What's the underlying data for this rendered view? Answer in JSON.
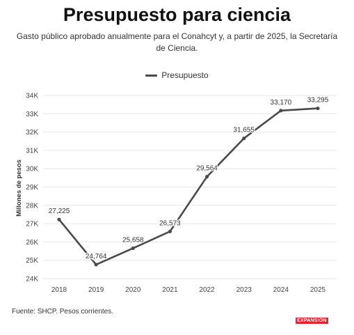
{
  "header": {
    "title": "Presupuesto para ciencia",
    "subtitle": "Gasto público aprobado anualmente para el Conahcyt y, a partir de 2025, la Secretaría de Ciencia."
  },
  "footer": {
    "source": "Fuente: SHCP. Pesos corrientes.",
    "logo_text": "EXPANSIÓN"
  },
  "colors": {
    "line": "#4a4a4a",
    "grid": "#e6e6e6",
    "brand": "#e3262e"
  },
  "chart_data": {
    "type": "line",
    "title": "Presupuesto para ciencia",
    "ylabel": "Millones de pesos",
    "xlabel": "",
    "x": [
      "2018",
      "2019",
      "2020",
      "2021",
      "2022",
      "2023",
      "2024",
      "2025"
    ],
    "series": [
      {
        "name": "Presupuesto",
        "values": [
          27225,
          24764,
          25658,
          26573,
          29564,
          31655,
          33170,
          33295
        ],
        "labels": [
          "27,225",
          "24,764",
          "25,658",
          "26,573",
          "29,564",
          "31,655",
          "33,170",
          "33,295"
        ]
      }
    ],
    "ylim": [
      24000,
      34000
    ],
    "yticks": [
      24000,
      25000,
      26000,
      27000,
      28000,
      29000,
      30000,
      31000,
      32000,
      33000,
      34000
    ],
    "ytick_labels": [
      "24K",
      "25K",
      "26K",
      "27K",
      "28K",
      "29K",
      "30K",
      "31K",
      "32K",
      "33K",
      "34K"
    ],
    "legend_position": "top-center",
    "grid": true
  }
}
